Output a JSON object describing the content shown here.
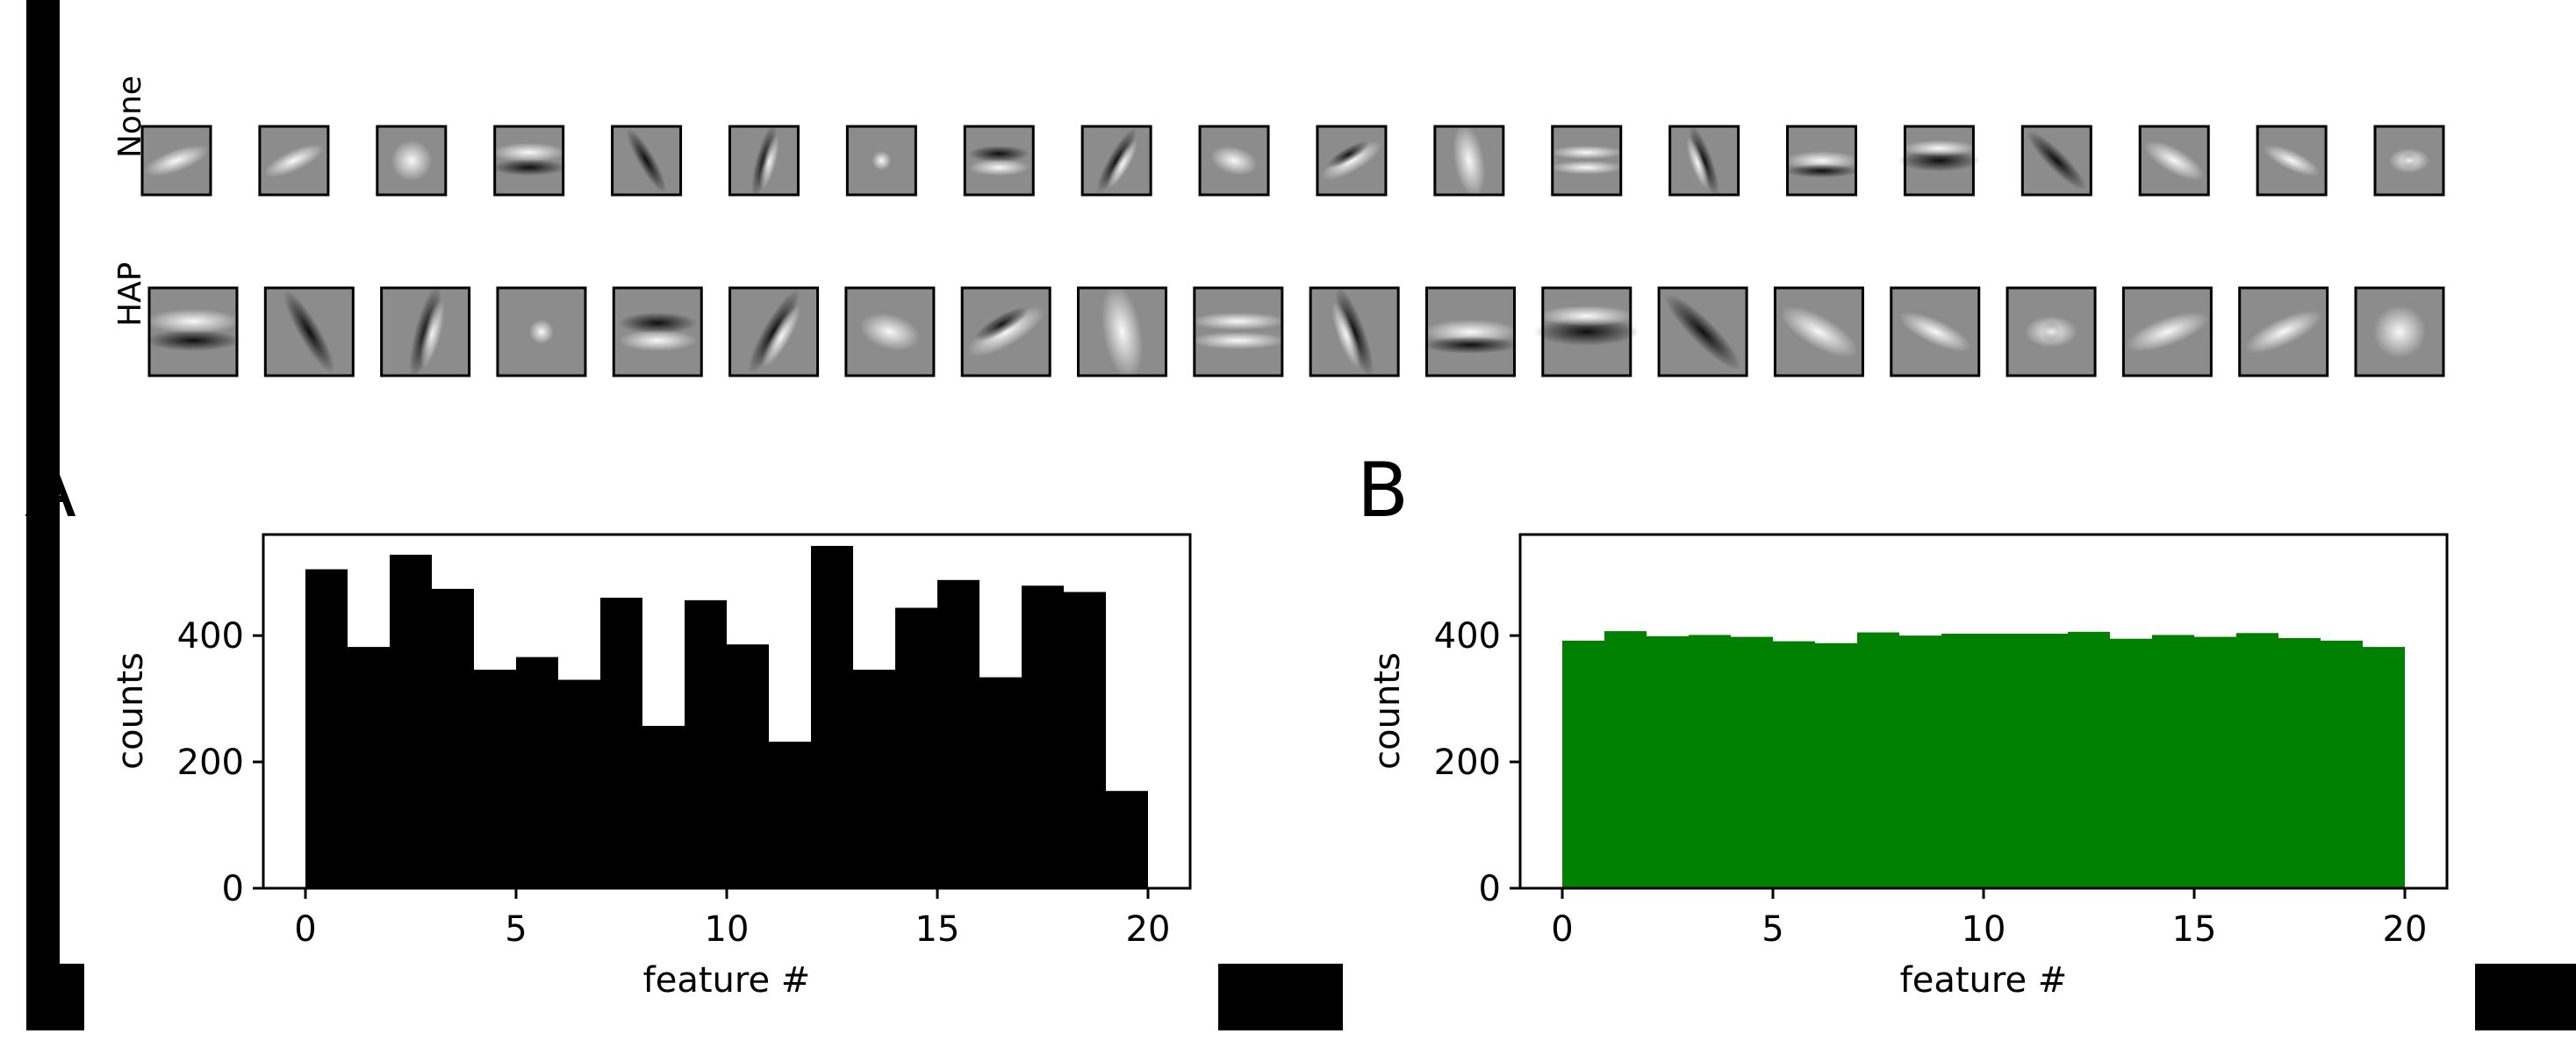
{
  "feature_rows": [
    {
      "label": "None",
      "label_color": "#000000",
      "count": 20
    },
    {
      "label": "HAP",
      "label_color": "#008000",
      "count": 20
    }
  ],
  "panels": {
    "A": {
      "letter": "A",
      "bar_color": "#000000"
    },
    "B": {
      "letter": "B",
      "bar_color": "#008000"
    }
  },
  "chart_data": [
    {
      "type": "bar",
      "panel": "A",
      "xlabel": "feature #",
      "ylabel": "counts",
      "xlim": [
        -1,
        21
      ],
      "ylim": [
        0,
        560
      ],
      "xticks": [
        0,
        5,
        10,
        15,
        20
      ],
      "yticks": [
        0,
        200,
        400
      ],
      "bin_edges": [
        0,
        1,
        2,
        3,
        4,
        5,
        6,
        7,
        8,
        9,
        10,
        11,
        12,
        13,
        14,
        15,
        16,
        17,
        18,
        19,
        20
      ],
      "values": [
        505,
        382,
        528,
        474,
        346,
        366,
        330,
        460,
        257,
        456,
        386,
        232,
        542,
        346,
        444,
        488,
        334,
        479,
        469,
        154
      ],
      "color": "#000000"
    },
    {
      "type": "bar",
      "panel": "B",
      "xlabel": "feature #",
      "ylabel": "counts",
      "xlim": [
        -1,
        21
      ],
      "ylim": [
        0,
        560
      ],
      "xticks": [
        0,
        5,
        10,
        15,
        20
      ],
      "yticks": [
        0,
        200,
        400
      ],
      "bin_edges": [
        0,
        1,
        2,
        3,
        4,
        5,
        6,
        7,
        8,
        9,
        10,
        11,
        12,
        13,
        14,
        15,
        16,
        17,
        18,
        19,
        20
      ],
      "values": [
        392,
        407,
        399,
        401,
        398,
        391,
        388,
        405,
        400,
        403,
        403,
        403,
        406,
        395,
        401,
        398,
        404,
        396,
        392,
        382
      ],
      "color": "#008000"
    }
  ]
}
